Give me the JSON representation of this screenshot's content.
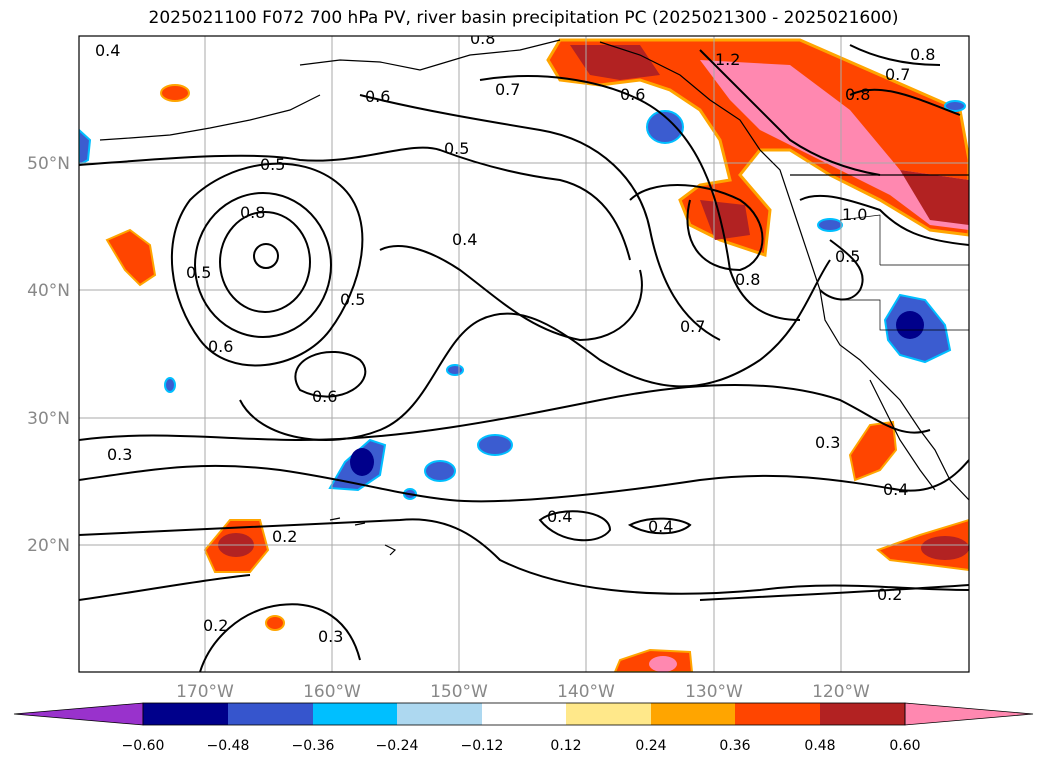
{
  "title": "2025021100 F072 700 hPa PV, river basin precipitation PC (2025021300 - 2025021600)",
  "map": {
    "lat_labels": [
      "50°N",
      "40°N",
      "30°N",
      "20°N"
    ],
    "lon_labels": [
      "170°W",
      "160°W",
      "150°W",
      "140°W",
      "130°W",
      "120°W"
    ],
    "contour_labels": [
      "0.4",
      "0.8",
      "0.7",
      "0.6",
      "1.2",
      "0.6",
      "0.5",
      "0.8",
      "0.8",
      "0.5",
      "0.8",
      "0.7",
      "0.5",
      "0.4",
      "0.8",
      "0.7",
      "0.6",
      "0.5",
      "0.6",
      "1.0",
      "0.5",
      "0.3",
      "0.3",
      "0.4",
      "0.2",
      "0.4",
      "0.4",
      "0.2",
      "0.2",
      "0.3"
    ],
    "grid": true,
    "fill_colors": {
      "strong_positive": "#ff88b0",
      "pos_high": "#b22222",
      "pos_mid": "#ff4500",
      "pos_low": "#ffa500",
      "pos_min": "#ffe88a",
      "neg_min": "#add8f2",
      "neg_low": "#00bfff",
      "neg_mid": "#3b5cd0",
      "neg_high": "#00008b"
    }
  },
  "colorbar": {
    "ticks": [
      "−0.60",
      "−0.48",
      "−0.36",
      "−0.24",
      "−0.12",
      "0.12",
      "0.24",
      "0.36",
      "0.48",
      "0.60"
    ],
    "colors": [
      "#9932cc",
      "#00008b",
      "#3655cd",
      "#00bfff",
      "#add8f0",
      "#ffffff",
      "#ffe88a",
      "#ffa500",
      "#ff4500",
      "#b22222",
      "#ff88b0"
    ]
  }
}
